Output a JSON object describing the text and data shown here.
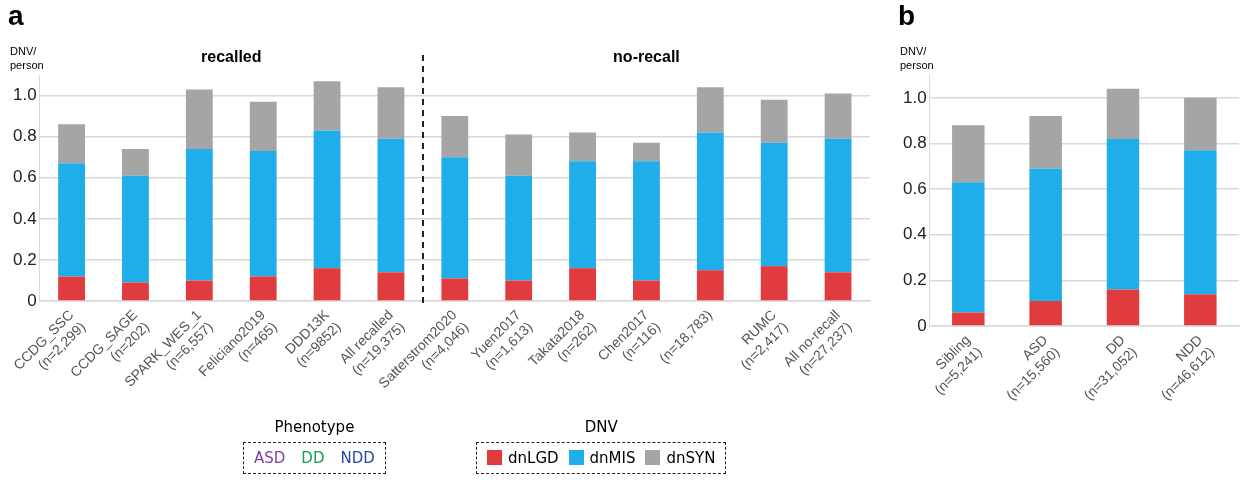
{
  "chart_data": [
    {
      "type": "bar",
      "title": "a",
      "ylabel": "DNV/person",
      "stacked": true,
      "grid": "y",
      "legend": "bottom",
      "legend_title": "DNV",
      "annotations": [
        "recalled",
        "no-recall",
        "Phenotype",
        "ASD",
        "DD",
        "NDD"
      ],
      "categories": [
        "CCDG_SSC\n(n=2,299)",
        "CCDG_SAGE\n(n=202)",
        "SPARK_WES_1\n(n=6,557)",
        "Feliciano2019\n(n=465)",
        "DDD13K\n(n=9852)",
        "All recalled\n(n=19,375)",
        "Satterstrom2020\n(n=4,046)",
        "Yuen2017\n(n=1,613)",
        "Takata2018\n(n=262)",
        "Chen2017\n(n=116)",
        "(n=18,783)",
        "RUMC\n(n=2,417)",
        "All no-recall\n(n=27,237)"
      ],
      "ylim": [
        0,
        1.1
      ],
      "yticks": [
        0,
        0.2,
        0.4,
        0.6,
        0.8,
        {
          "value": 1,
          "label": "1.0"
        }
      ],
      "series": [
        {
          "name": "dnLGD",
          "color": "#e03c3f",
          "values": [
            0.12,
            0.09,
            0.1,
            0.12,
            0.16,
            0.14,
            0.11,
            0.1,
            0.16,
            0.1,
            0.15,
            0.17,
            0.14
          ]
        },
        {
          "name": "dnMIS",
          "color": "#20aeea",
          "values": [
            0.55,
            0.52,
            0.64,
            0.61,
            0.67,
            0.65,
            0.59,
            0.51,
            0.52,
            0.58,
            0.67,
            0.6,
            0.65
          ]
        },
        {
          "name": "dnSYN",
          "color": "#a5a5a5",
          "values": [
            0.19,
            0.13,
            0.29,
            0.24,
            0.24,
            0.25,
            0.2,
            0.2,
            0.14,
            0.09,
            0.22,
            0.21,
            0.22
          ]
        }
      ]
    },
    {
      "type": "bar",
      "title": "b",
      "ylabel": "DNV/person",
      "stacked": true,
      "grid": "y",
      "categories": [
        "Sibling\n(n=5,241)",
        "ASD\n(n=15,560)",
        "DD\n(n=31,052)",
        "NDD\n(n=46,612)"
      ],
      "ylim": [
        0,
        1.1
      ],
      "yticks": [
        0,
        0.2,
        0.4,
        0.6,
        0.8,
        {
          "value": 1,
          "label": "1.0"
        }
      ],
      "series": [
        {
          "color": "#e03c3f",
          "values": [
            0.06,
            0.11,
            0.16,
            0.14
          ]
        },
        {
          "color": "#20aeea",
          "values": [
            0.57,
            0.58,
            0.66,
            0.63
          ]
        },
        {
          "color": "#a5a5a5",
          "values": [
            0.25,
            0.23,
            0.22,
            0.23
          ]
        }
      ]
    }
  ]
}
